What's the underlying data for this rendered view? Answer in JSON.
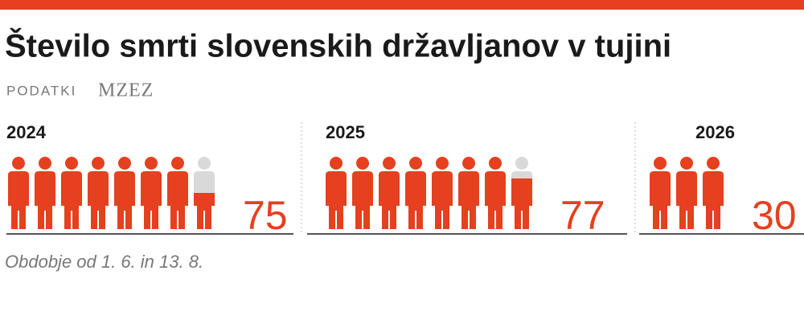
{
  "chart_data": {
    "type": "pictogram",
    "title": "Število smrti slovenskih državljanov v tujini",
    "source_label": "PODATKI",
    "source": "MZEZ",
    "categories": [
      "2024",
      "2025",
      "2026"
    ],
    "values": [
      75,
      77,
      30
    ],
    "color": "#e5401f",
    "note": "Obdobje od 1. 6. in 13. 8."
  }
}
